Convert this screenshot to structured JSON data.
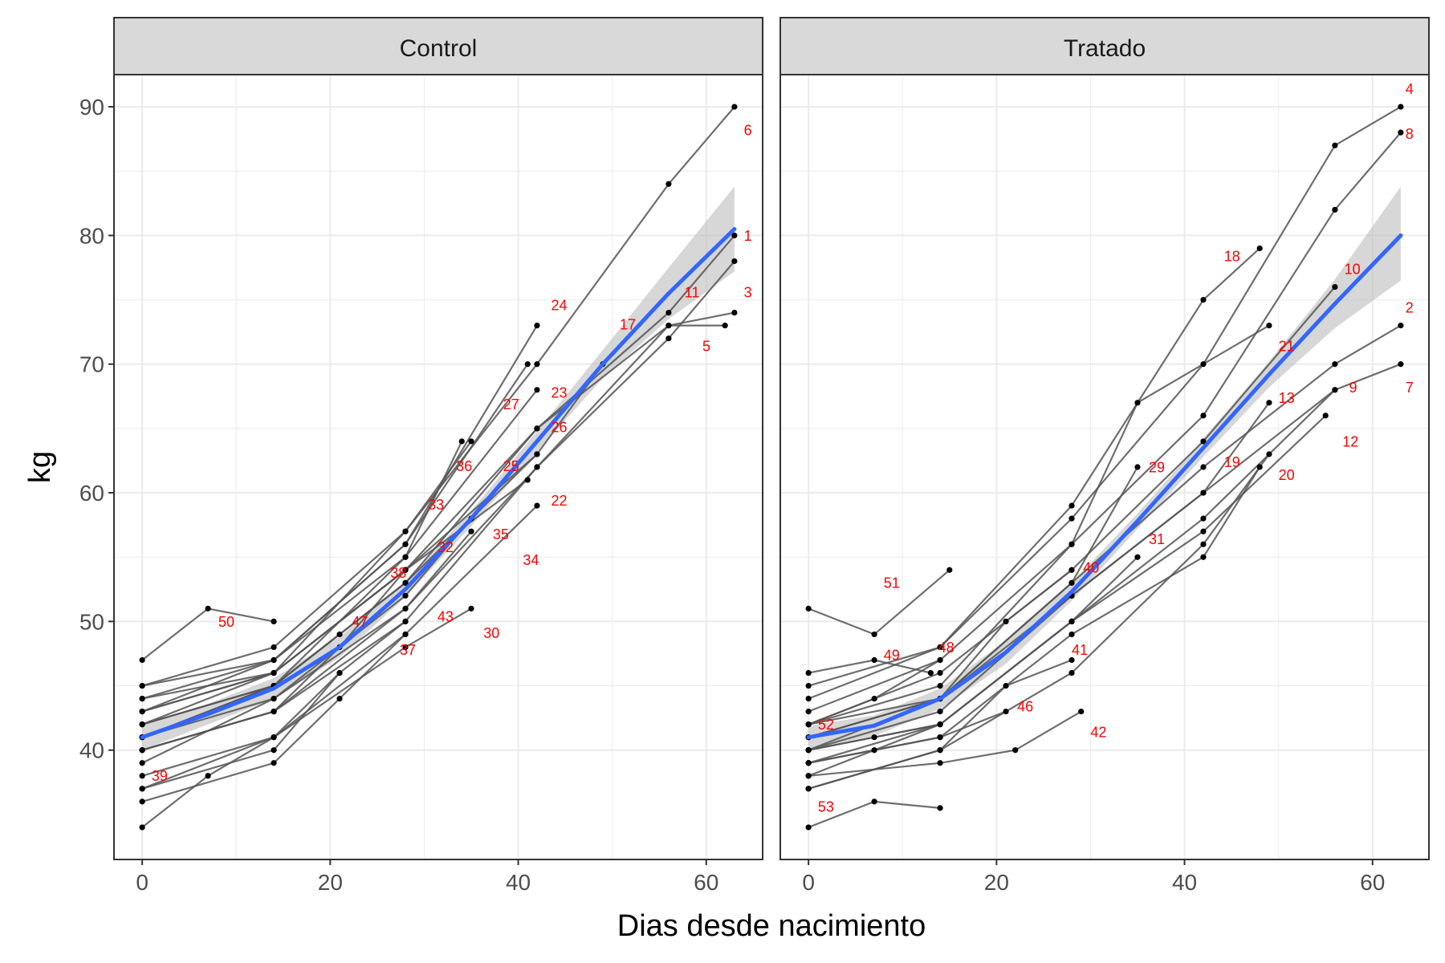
{
  "chart_data": {
    "type": "line",
    "xlabel": "Dias desde nacimiento",
    "ylabel": "kg",
    "xlim": [
      -3,
      66
    ],
    "ylim": [
      31.5,
      92.5
    ],
    "x_ticks": [
      0,
      20,
      40,
      60
    ],
    "y_ticks": [
      40,
      50,
      60,
      70,
      80,
      90
    ],
    "grid": true,
    "colors": {
      "panel_background": "#ffffff",
      "strip_background": "#d9d9d9",
      "grid": "#ebebeb",
      "trajectory": "#555555",
      "point": "#000000",
      "smooth": "#3366ff",
      "ribbon": "#bdbdbd",
      "id_label": "#ff0000"
    },
    "facets": [
      {
        "name": "Control",
        "smooth": {
          "x": [
            0,
            7,
            14,
            21,
            28,
            35,
            42,
            49,
            56,
            63
          ],
          "y": [
            41.0,
            42.8,
            44.8,
            48.0,
            52.5,
            58.0,
            64.0,
            70.0,
            75.5,
            80.5
          ],
          "lower": [
            40.0,
            42.0,
            44.0,
            47.2,
            51.9,
            57.4,
            63.2,
            68.9,
            73.5,
            77.2
          ],
          "upper": [
            42.0,
            43.6,
            45.6,
            48.8,
            53.1,
            58.6,
            64.8,
            71.1,
            77.5,
            83.8
          ]
        },
        "animals": [
          {
            "id": "1",
            "x": [
              0,
              14,
              28,
              42,
              56,
              63
            ],
            "y": [
              42,
              45,
              53,
              65,
              74,
              80
            ]
          },
          {
            "id": "3",
            "x": [
              0,
              14,
              28,
              42,
              56,
              63
            ],
            "y": [
              40,
              43,
              50,
              62,
              72,
              78
            ]
          },
          {
            "id": "5",
            "x": [
              0,
              14,
              28,
              42,
              56,
              62
            ],
            "y": [
              41,
              44,
              51,
              62,
              73,
              73
            ]
          },
          {
            "id": "6",
            "x": [
              0,
              14,
              28,
              42,
              56,
              63
            ],
            "y": [
              44,
              46,
              57,
              70,
              84,
              90
            ]
          },
          {
            "id": "11",
            "x": [
              0,
              14,
              28,
              42,
              56,
              63
            ],
            "y": [
              43,
              46,
              54,
              65,
              73,
              74
            ]
          },
          {
            "id": "17",
            "x": [
              0,
              14,
              28,
              42,
              49
            ],
            "y": [
              43,
              46,
              54,
              63,
              70
            ]
          },
          {
            "id": "22",
            "x": [
              0,
              14,
              28,
              42
            ],
            "y": [
              38,
              41,
              49,
              59
            ]
          },
          {
            "id": "23",
            "x": [
              0,
              14,
              28,
              42
            ],
            "y": [
              44,
              47,
              55,
              68
            ]
          },
          {
            "id": "24",
            "x": [
              0,
              14,
              28,
              42
            ],
            "y": [
              45,
              47,
              56,
              73
            ]
          },
          {
            "id": "25",
            "x": [
              0,
              14,
              28,
              41
            ],
            "y": [
              42,
              46,
              54,
              61
            ]
          },
          {
            "id": "26",
            "x": [
              0,
              14,
              28,
              42
            ],
            "y": [
              41,
              45,
              53,
              63
            ]
          },
          {
            "id": "27",
            "x": [
              0,
              14,
              28,
              41
            ],
            "y": [
              43,
              47,
              56,
              70
            ]
          },
          {
            "id": "30",
            "x": [
              0,
              14,
              28,
              35
            ],
            "y": [
              37,
              41,
              48,
              51
            ]
          },
          {
            "id": "32",
            "x": [
              0,
              14,
              28,
              35
            ],
            "y": [
              40,
              43,
              51,
              57
            ]
          },
          {
            "id": "33",
            "x": [
              0,
              14,
              28,
              34
            ],
            "y": [
              42,
              45,
              55,
              64
            ]
          },
          {
            "id": "35",
            "x": [
              0,
              14,
              28,
              35
            ],
            "y": [
              39,
              44,
              52,
              58
            ]
          },
          {
            "id": "36",
            "x": [
              0,
              14,
              28,
              35
            ],
            "y": [
              45,
              48,
              57,
              64
            ]
          },
          {
            "id": "37",
            "x": [
              0,
              14,
              21,
              28
            ],
            "y": [
              36,
              39,
              44,
              49
            ]
          },
          {
            "id": "38",
            "x": [
              0,
              14,
              21,
              28
            ],
            "y": [
              40,
              43,
              48,
              54
            ]
          },
          {
            "id": "39",
            "x": [
              0,
              7,
              14,
              21
            ],
            "y": [
              34,
              38,
              41,
              46
            ]
          },
          {
            "id": "43",
            "x": [
              0,
              14,
              21,
              28
            ],
            "y": [
              37,
              40,
              46,
              50
            ]
          },
          {
            "id": "47",
            "x": [
              0,
              14,
              21
            ],
            "y": [
              41,
              45,
              49
            ]
          },
          {
            "id": "50",
            "x": [
              0,
              7,
              14
            ],
            "y": [
              47,
              51,
              50
            ]
          }
        ],
        "labels": [
          {
            "text": "6",
            "x": 64,
            "y": 87.8
          },
          {
            "text": "1",
            "x": 64,
            "y": 79.6
          },
          {
            "text": "11",
            "x": 57.7,
            "y": 75.2
          },
          {
            "text": "3",
            "x": 64,
            "y": 75.2
          },
          {
            "text": "24",
            "x": 43.5,
            "y": 74.2
          },
          {
            "text": "17",
            "x": 50.8,
            "y": 72.7
          },
          {
            "text": "5",
            "x": 59.6,
            "y": 71.0
          },
          {
            "text": "23",
            "x": 43.5,
            "y": 67.4
          },
          {
            "text": "27",
            "x": 38.4,
            "y": 66.5
          },
          {
            "text": "26",
            "x": 43.5,
            "y": 64.7
          },
          {
            "text": "36",
            "x": 33.4,
            "y": 61.7
          },
          {
            "text": "25",
            "x": 38.4,
            "y": 61.7
          },
          {
            "text": "22",
            "x": 43.5,
            "y": 59.0
          },
          {
            "text": "33",
            "x": 30.4,
            "y": 58.7
          },
          {
            "text": "35",
            "x": 37.3,
            "y": 56.4
          },
          {
            "text": "32",
            "x": 31.4,
            "y": 55.4
          },
          {
            "text": "34",
            "x": 40.5,
            "y": 54.4
          },
          {
            "text": "38",
            "x": 26.4,
            "y": 53.4
          },
          {
            "text": "50",
            "x": 8.1,
            "y": 49.6
          },
          {
            "text": "47",
            "x": 22.3,
            "y": 49.6
          },
          {
            "text": "43",
            "x": 31.4,
            "y": 50.0
          },
          {
            "text": "30",
            "x": 36.3,
            "y": 48.7
          },
          {
            "text": "37",
            "x": 27.4,
            "y": 47.4
          },
          {
            "text": "39",
            "x": 1.0,
            "y": 37.6
          }
        ]
      },
      {
        "name": "Tratado",
        "smooth": {
          "x": [
            0,
            7,
            14,
            21,
            28,
            35,
            42,
            49,
            56,
            63
          ],
          "y": [
            41.0,
            41.9,
            44.0,
            47.6,
            52.3,
            57.8,
            63.5,
            69.2,
            74.7,
            80.0
          ],
          "lower": [
            40.1,
            41.1,
            43.2,
            46.7,
            51.6,
            57.2,
            62.8,
            68.2,
            72.8,
            76.5
          ],
          "upper": [
            41.9,
            42.7,
            44.8,
            48.5,
            53.0,
            58.4,
            64.2,
            70.2,
            76.6,
            83.8
          ]
        },
        "animals": [
          {
            "id": "2",
            "x": [
              0,
              14,
              28,
              42,
              56,
              63
            ],
            "y": [
              42,
              44,
              53,
              62,
              70,
              73
            ]
          },
          {
            "id": "4",
            "x": [
              0,
              14,
              28,
              42,
              56,
              63
            ],
            "y": [
              44,
              48,
              58,
              70,
              87,
              90
            ]
          },
          {
            "id": "7",
            "x": [
              0,
              14,
              28,
              42,
              56,
              63
            ],
            "y": [
              39,
              42,
              50,
              58,
              68,
              70
            ]
          },
          {
            "id": "8",
            "x": [
              0,
              14,
              28,
              42,
              56,
              63
            ],
            "y": [
              43,
              47,
              56,
              66,
              82,
              88
            ]
          },
          {
            "id": "9",
            "x": [
              0,
              14,
              28,
              42,
              56
            ],
            "y": [
              40,
              43,
              52,
              60,
              68
            ]
          },
          {
            "id": "10",
            "x": [
              0,
              14,
              28,
              42,
              56
            ],
            "y": [
              42,
              46,
              54,
              64,
              76
            ]
          },
          {
            "id": "12",
            "x": [
              0,
              14,
              28,
              42,
              55
            ],
            "y": [
              40,
              42,
              50,
              57,
              66
            ]
          },
          {
            "id": "13",
            "x": [
              0,
              14,
              28,
              42,
              49
            ],
            "y": [
              41,
              44,
              52,
              60,
              67
            ]
          },
          {
            "id": "18",
            "x": [
              0,
              14,
              28,
              42,
              48
            ],
            "y": [
              45,
              48,
              59,
              75,
              79
            ]
          },
          {
            "id": "19",
            "x": [
              0,
              14,
              28,
              42,
              48
            ],
            "y": [
              39,
              41,
              49,
              55,
              62
            ]
          },
          {
            "id": "20",
            "x": [
              0,
              14,
              28,
              42,
              49
            ],
            "y": [
              37,
              40,
              46,
              56,
              63
            ]
          },
          {
            "id": "21",
            "x": [
              0,
              14,
              28,
              35,
              49
            ],
            "y": [
              42,
              45,
              56,
              67,
              73
            ]
          },
          {
            "id": "29",
            "x": [
              0,
              14,
              28,
              35
            ],
            "y": [
              40,
              44,
              53,
              62
            ]
          },
          {
            "id": "31",
            "x": [
              0,
              14,
              28,
              35
            ],
            "y": [
              38,
              42,
              50,
              55
            ]
          },
          {
            "id": "40",
            "x": [
              0,
              14,
              21,
              28
            ],
            "y": [
              41,
              44,
              50,
              54
            ]
          },
          {
            "id": "41",
            "x": [
              0,
              14,
              21,
              28
            ],
            "y": [
              37,
              40,
              45,
              47
            ]
          },
          {
            "id": "42",
            "x": [
              0,
              14,
              22,
              29
            ],
            "y": [
              38,
              39,
              40,
              43
            ]
          },
          {
            "id": "46",
            "x": [
              0,
              7,
              14,
              21
            ],
            "y": [
              39,
              40,
              41,
              43
            ]
          },
          {
            "id": "48",
            "x": [
              0,
              7,
              14
            ],
            "y": [
              42,
              44,
              47
            ]
          },
          {
            "id": "49",
            "x": [
              0,
              7,
              13
            ],
            "y": [
              46,
              47,
              46
            ]
          },
          {
            "id": "51",
            "x": [
              0,
              7,
              15
            ],
            "y": [
              51,
              49,
              54
            ]
          },
          {
            "id": "52",
            "x": [
              0,
              7,
              14
            ],
            "y": [
              40,
              41,
              42
            ]
          },
          {
            "id": "53",
            "x": [
              0,
              7,
              14
            ],
            "y": [
              34,
              36,
              35.5
            ]
          }
        ],
        "labels": [
          {
            "text": "4",
            "x": 63.5,
            "y": 91.0
          },
          {
            "text": "8",
            "x": 63.5,
            "y": 87.5
          },
          {
            "text": "18",
            "x": 44.2,
            "y": 78.0
          },
          {
            "text": "10",
            "x": 57.0,
            "y": 77.0
          },
          {
            "text": "2",
            "x": 63.5,
            "y": 74.0
          },
          {
            "text": "21",
            "x": 50.0,
            "y": 71.0
          },
          {
            "text": "9",
            "x": 57.5,
            "y": 67.8
          },
          {
            "text": "7",
            "x": 63.5,
            "y": 67.8
          },
          {
            "text": "13",
            "x": 50.0,
            "y": 67.0
          },
          {
            "text": "12",
            "x": 56.8,
            "y": 63.6
          },
          {
            "text": "19",
            "x": 44.2,
            "y": 62.0
          },
          {
            "text": "29",
            "x": 36.2,
            "y": 61.6
          },
          {
            "text": "20",
            "x": 50.0,
            "y": 61.0
          },
          {
            "text": "31",
            "x": 36.2,
            "y": 56.0
          },
          {
            "text": "40",
            "x": 29.2,
            "y": 53.8
          },
          {
            "text": "51",
            "x": 8.0,
            "y": 52.6
          },
          {
            "text": "48",
            "x": 13.8,
            "y": 47.6
          },
          {
            "text": "41",
            "x": 28.0,
            "y": 47.4
          },
          {
            "text": "49",
            "x": 8.0,
            "y": 47.0
          },
          {
            "text": "46",
            "x": 22.2,
            "y": 43.0
          },
          {
            "text": "42",
            "x": 30.0,
            "y": 41.0
          },
          {
            "text": "52",
            "x": 1.0,
            "y": 41.6
          },
          {
            "text": "53",
            "x": 1.0,
            "y": 35.2
          }
        ]
      }
    ]
  }
}
